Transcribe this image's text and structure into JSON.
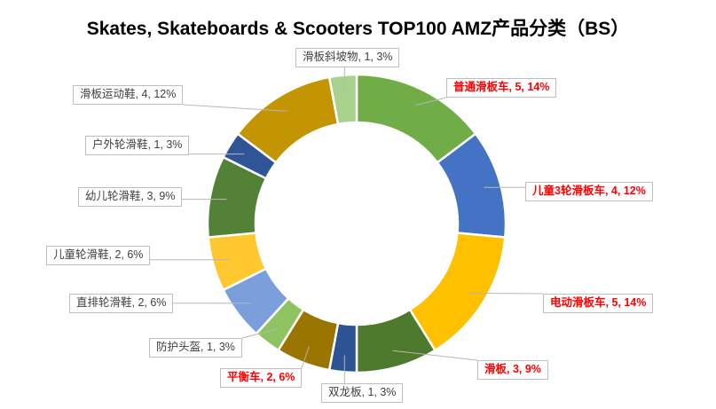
{
  "title": "Skates, Skateboards & Scooters TOP100 AMZ产品分类（BS）",
  "chart_data": {
    "type": "pie",
    "subtype": "donut",
    "title": "Skates, Skateboards & Scooters TOP100 AMZ产品分类（BS）",
    "total_count": 34,
    "start_angle_deg": 0,
    "direction": "clockwise",
    "hole_ratio": 0.68,
    "legend": "none",
    "label_format": "name, count, percent",
    "emphasis_color": "#FF0000",
    "label_text_color": "#404040",
    "label_border_color": "#BFBFBF",
    "leader_line_color": "#B7B7B7",
    "items": [
      {
        "name": "普通滑板车",
        "count": 5,
        "pct": "14%",
        "color": "#70AD47",
        "emphasis": true,
        "label": "普通滑板车, 5, 14%"
      },
      {
        "name": "儿童3轮滑板车",
        "count": 4,
        "pct": "12%",
        "color": "#4472C4",
        "emphasis": true,
        "label": "儿童3轮滑板车, 4, 12%"
      },
      {
        "name": "电动滑板车",
        "count": 5,
        "pct": "14%",
        "color": "#FFC000",
        "emphasis": true,
        "label": "电动滑板车, 5, 14%"
      },
      {
        "name": "滑板",
        "count": 3,
        "pct": "9%",
        "color": "#4E7A2E",
        "emphasis": true,
        "label": "滑板, 3, 9%"
      },
      {
        "name": "双龙板",
        "count": 1,
        "pct": "3%",
        "color": "#2E5395",
        "emphasis": false,
        "label": "双龙板, 1, 3%"
      },
      {
        "name": "平衡车",
        "count": 2,
        "pct": "6%",
        "color": "#9A7500",
        "emphasis": true,
        "label": "平衡车, 2, 6%"
      },
      {
        "name": "防护头盔",
        "count": 1,
        "pct": "3%",
        "color": "#8FC361",
        "emphasis": false,
        "label": "防护头盔, 1, 3%"
      },
      {
        "name": "直排轮滑鞋",
        "count": 2,
        "pct": "6%",
        "color": "#7B9FDB",
        "emphasis": false,
        "label": "直排轮滑鞋, 2, 6%"
      },
      {
        "name": "儿童轮滑鞋",
        "count": 2,
        "pct": "6%",
        "color": "#FFC82E",
        "emphasis": false,
        "label": "儿童轮滑鞋, 2, 6%"
      },
      {
        "name": "幼儿轮滑鞋",
        "count": 3,
        "pct": "9%",
        "color": "#538135",
        "emphasis": false,
        "label": "幼儿轮滑鞋, 3, 9%"
      },
      {
        "name": "户外轮滑鞋",
        "count": 1,
        "pct": "3%",
        "color": "#2F5597",
        "emphasis": false,
        "label": "户外轮滑鞋, 1, 3%"
      },
      {
        "name": "滑板运动鞋",
        "count": 4,
        "pct": "12%",
        "color": "#C49502",
        "emphasis": false,
        "label": "滑板运动鞋, 4, 12%"
      },
      {
        "name": "滑板斜坡物",
        "count": 1,
        "pct": "3%",
        "color": "#A9D18E",
        "emphasis": false,
        "label": "滑板斜坡物, 1, 3%"
      }
    ]
  }
}
